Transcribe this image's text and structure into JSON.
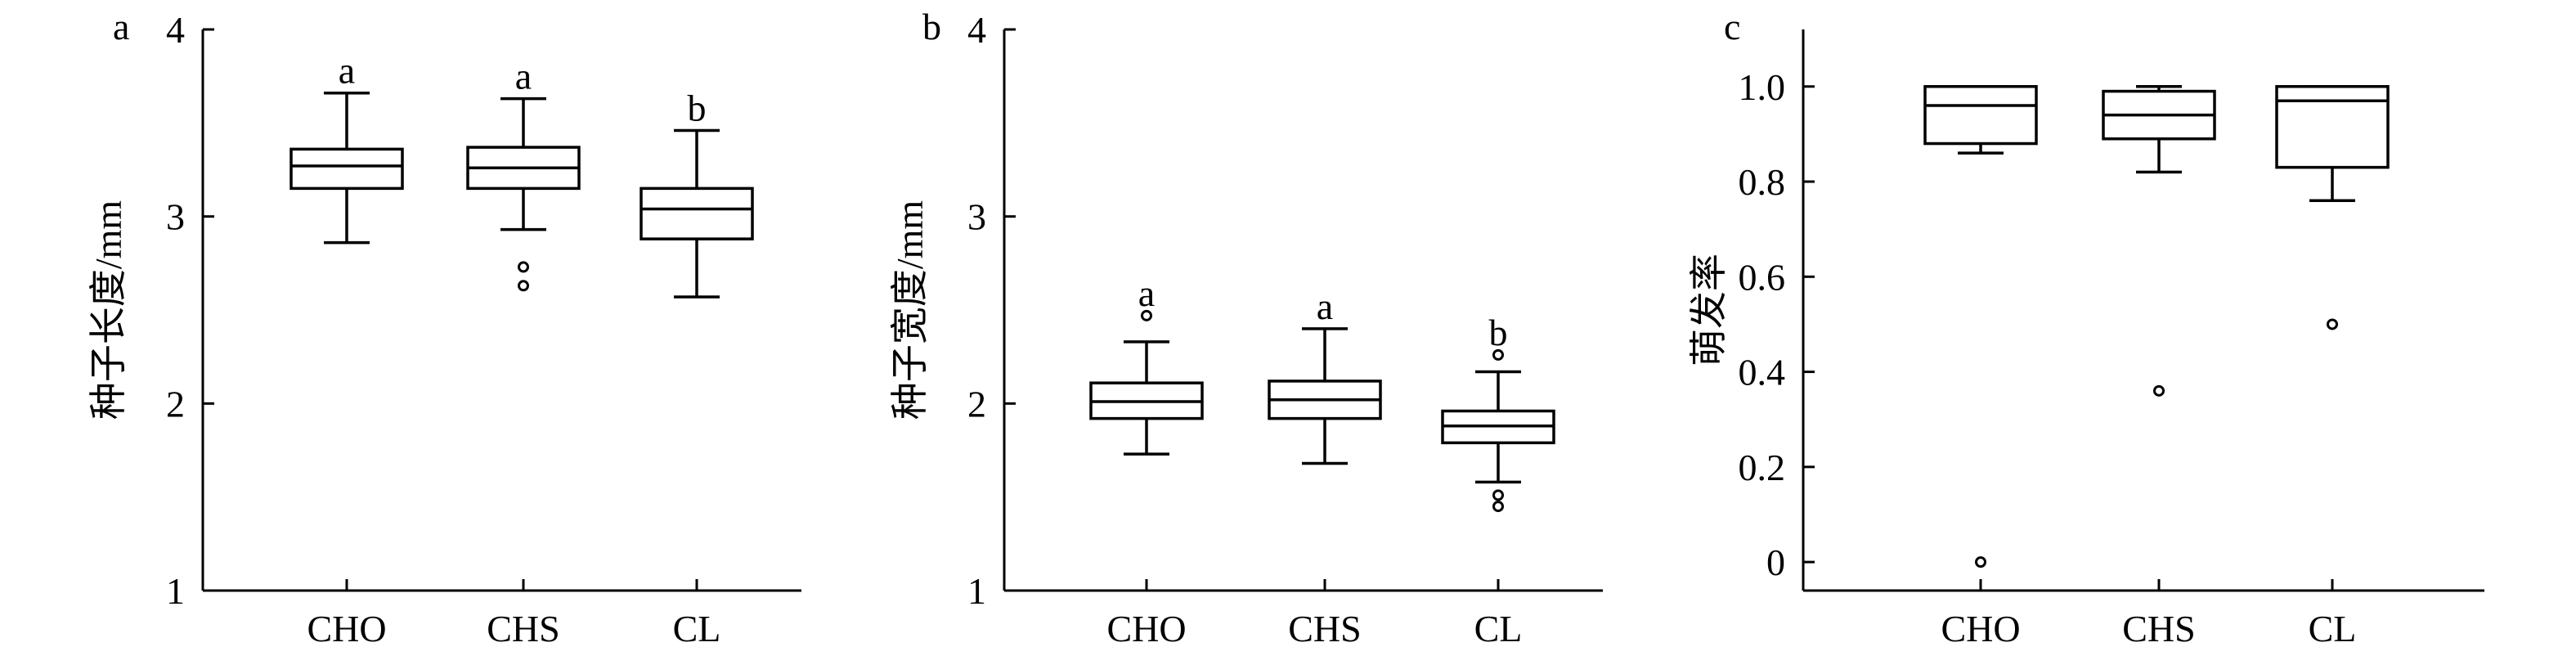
{
  "chart_data": [
    {
      "type": "box",
      "panel_label": "a",
      "title": "",
      "xlabel": "",
      "ylabel": "种子长度/mm",
      "ylim": [
        1,
        4
      ],
      "yticks": [
        1,
        2,
        3,
        4
      ],
      "ytick_labels": [
        "1",
        "2",
        "3",
        "4"
      ],
      "categories": [
        "CHO",
        "CHS",
        "CL"
      ],
      "boxes": [
        {
          "whisker_low": 2.86,
          "q1": 3.15,
          "median": 3.27,
          "q3": 3.36,
          "whisker_high": 3.66,
          "outliers": []
        },
        {
          "whisker_low": 2.93,
          "q1": 3.15,
          "median": 3.26,
          "q3": 3.37,
          "whisker_high": 3.63,
          "outliers": [
            2.73,
            2.63
          ]
        },
        {
          "whisker_low": 2.57,
          "q1": 2.88,
          "median": 3.04,
          "q3": 3.15,
          "whisker_high": 3.46,
          "outliers": []
        }
      ],
      "significance_letters": [
        "a",
        "a",
        "b"
      ],
      "grid": false,
      "legend": "none"
    },
    {
      "type": "box",
      "panel_label": "b",
      "title": "",
      "xlabel": "",
      "ylabel": "种子宽度/mm",
      "ylim": [
        1,
        4
      ],
      "yticks": [
        1,
        2,
        3,
        4
      ],
      "ytick_labels": [
        "1",
        "2",
        "3",
        "4"
      ],
      "categories": [
        "CHO",
        "CHS",
        "CL"
      ],
      "boxes": [
        {
          "whisker_low": 1.73,
          "q1": 1.92,
          "median": 2.01,
          "q3": 2.11,
          "whisker_high": 2.33,
          "outliers": [
            2.47
          ]
        },
        {
          "whisker_low": 1.68,
          "q1": 1.92,
          "median": 2.02,
          "q3": 2.12,
          "whisker_high": 2.4,
          "outliers": []
        },
        {
          "whisker_low": 1.58,
          "q1": 1.79,
          "median": 1.88,
          "q3": 1.96,
          "whisker_high": 2.17,
          "outliers": [
            2.26,
            1.51,
            1.45
          ]
        }
      ],
      "significance_letters": [
        "a",
        "a",
        "b"
      ],
      "grid": false,
      "legend": "none"
    },
    {
      "type": "box",
      "panel_label": "c",
      "title": "",
      "xlabel": "",
      "ylabel": "萌发率",
      "ylim": [
        -0.06,
        1.12
      ],
      "yticks": [
        0,
        0.2,
        0.4,
        0.6,
        0.8,
        1.0
      ],
      "ytick_labels": [
        "0",
        "0.2",
        "0.4",
        "0.6",
        "0.8",
        "1.0"
      ],
      "categories": [
        "CHO",
        "CHS",
        "CL"
      ],
      "boxes": [
        {
          "whisker_low": 0.86,
          "q1": 0.88,
          "median": 0.96,
          "q3": 1.0,
          "whisker_high": 1.0,
          "outliers": [
            0.0
          ]
        },
        {
          "whisker_low": 0.82,
          "q1": 0.89,
          "median": 0.94,
          "q3": 0.99,
          "whisker_high": 1.0,
          "outliers": [
            0.36
          ]
        },
        {
          "whisker_low": 0.76,
          "q1": 0.83,
          "median": 0.97,
          "q3": 1.0,
          "whisker_high": 1.0,
          "outliers": [
            0.5
          ]
        }
      ],
      "significance_letters": [],
      "grid": false,
      "legend": "none"
    }
  ]
}
